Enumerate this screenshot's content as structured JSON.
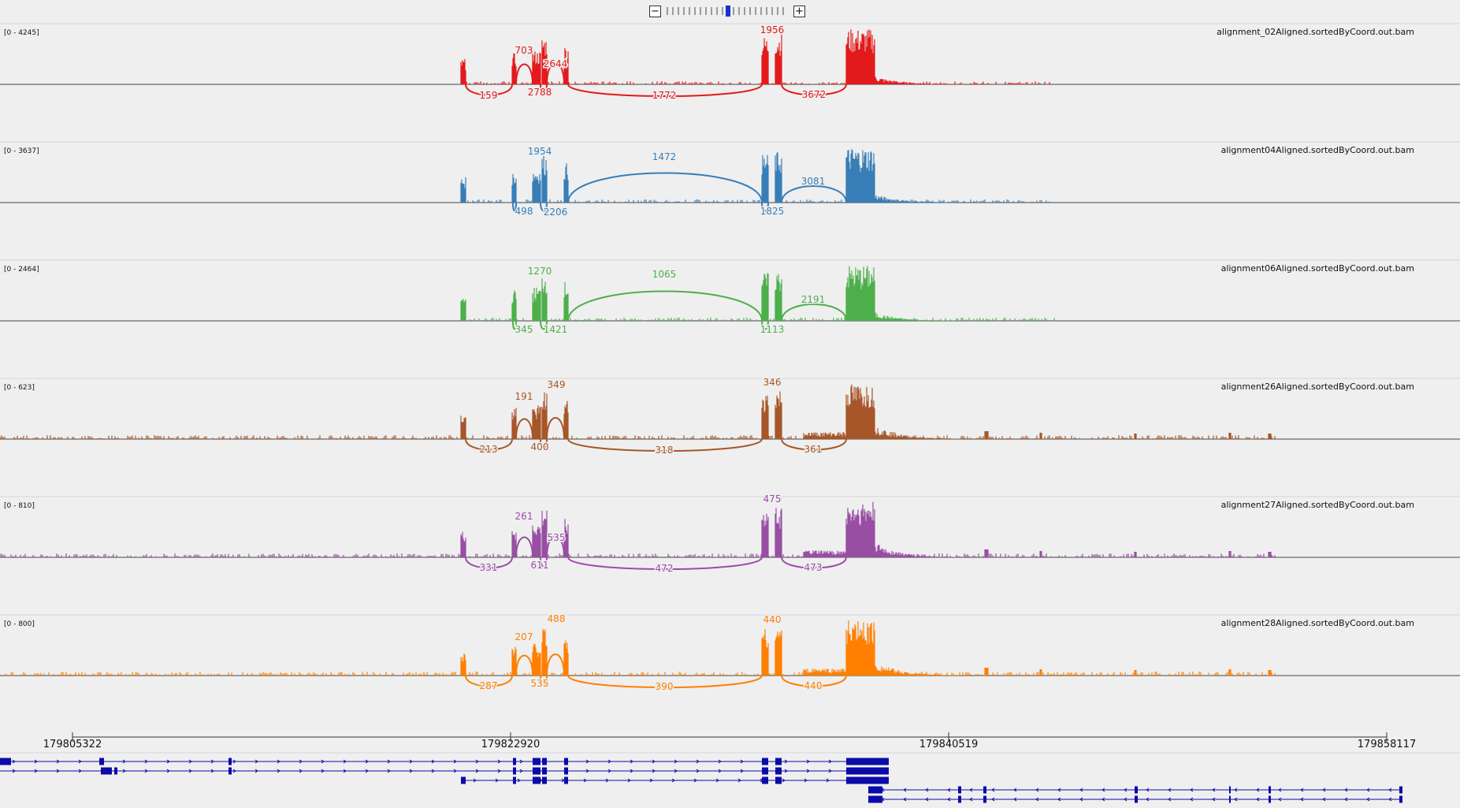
{
  "zoom": {
    "minus_label": "−",
    "plus_label": "+",
    "level": 0.5
  },
  "tracks": [
    {
      "name": "alignment_02Aligned.sortedByCoord.out.bam",
      "range": "[0 - 4245]",
      "color": "#e31a1c",
      "above": [
        [
          "703",
          665,
          68
        ],
        [
          "2644",
          705,
          85
        ],
        [
          "1956",
          980,
          42
        ]
      ],
      "below": [
        [
          "159",
          620,
          125
        ],
        [
          "2788",
          685,
          121
        ],
        [
          "1772",
          843,
          125
        ],
        [
          "3672",
          1033,
          124
        ]
      ]
    },
    {
      "name": "alignment04Aligned.sortedByCoord.out.bam",
      "range": "[0 - 3637]",
      "color": "#377eb8",
      "above": [
        [
          "1954",
          685,
          196
        ],
        [
          "1472",
          843,
          203
        ],
        [
          "3081",
          1032,
          234
        ]
      ],
      "below": [
        [
          "498",
          665,
          272
        ],
        [
          "2206",
          705,
          273
        ],
        [
          "1825",
          980,
          272
        ]
      ]
    },
    {
      "name": "alignment06Aligned.sortedByCoord.out.bam",
      "range": "[0 - 2464]",
      "color": "#4daf4a",
      "above": [
        [
          "1270",
          685,
          348
        ],
        [
          "1065",
          843,
          352
        ],
        [
          "2191",
          1032,
          384
        ]
      ],
      "below": [
        [
          "345",
          665,
          422
        ],
        [
          "1421",
          705,
          422
        ],
        [
          "1113",
          980,
          422
        ]
      ]
    },
    {
      "name": "alignment26Aligned.sortedByCoord.out.bam",
      "range": "[0 - 623]",
      "color": "#a65628",
      "above": [
        [
          "191",
          665,
          507
        ],
        [
          "349",
          706,
          492
        ],
        [
          "346",
          980,
          489
        ]
      ],
      "below": [
        [
          "213",
          620,
          574
        ],
        [
          "400",
          685,
          571
        ],
        [
          "318",
          843,
          575
        ],
        [
          "361",
          1032,
          574
        ]
      ]
    },
    {
      "name": "alignment27Aligned.sortedByCoord.out.bam",
      "range": "[0 - 810]",
      "color": "#984ea3",
      "above": [
        [
          "261",
          665,
          659
        ],
        [
          "535",
          706,
          686
        ],
        [
          "475",
          980,
          637
        ]
      ],
      "below": [
        [
          "331",
          620,
          724
        ],
        [
          "611",
          685,
          721
        ],
        [
          "472",
          843,
          725
        ],
        [
          "473",
          1032,
          724
        ]
      ]
    },
    {
      "name": "alignment28Aligned.sortedByCoord.out.bam",
      "range": "[0 - 800]",
      "color": "#ff7f00",
      "above": [
        [
          "207",
          665,
          812
        ],
        [
          "488",
          706,
          789
        ],
        [
          "440",
          980,
          790
        ]
      ],
      "below": [
        [
          "287",
          620,
          874
        ],
        [
          "535",
          685,
          871
        ],
        [
          "390",
          843,
          875
        ],
        [
          "440",
          1032,
          874
        ]
      ]
    }
  ],
  "ruler": {
    "labels": [
      "179805322",
      "179822920",
      "179840519",
      "179858117"
    ]
  },
  "gene_color": "#0b0ba8"
}
